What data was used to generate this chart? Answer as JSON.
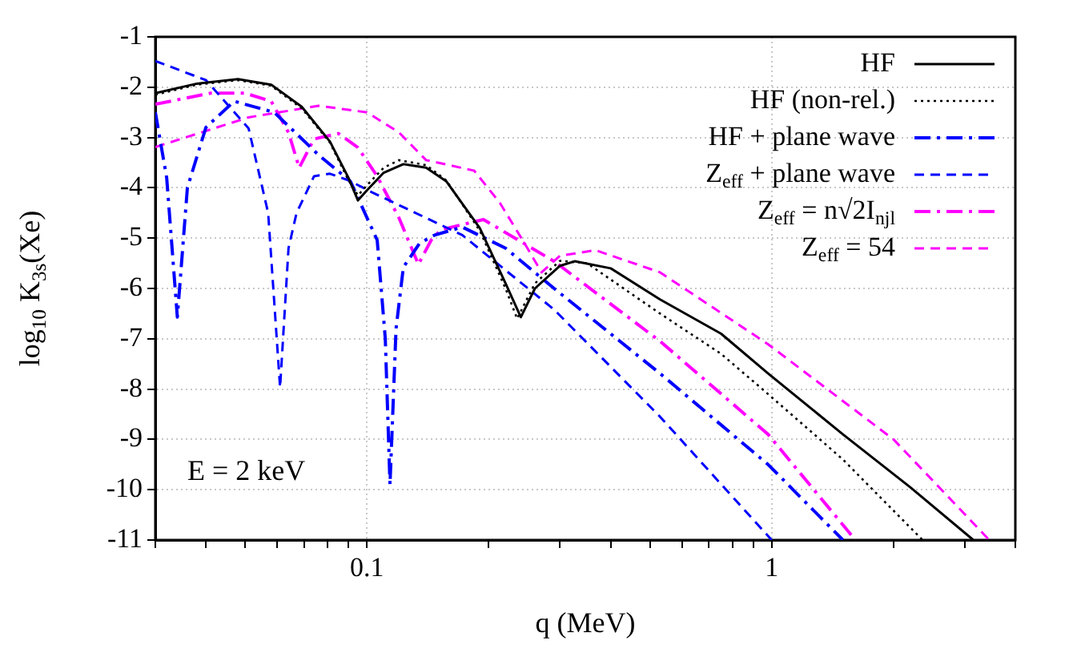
{
  "chart_data": {
    "type": "line",
    "xlabel": "q (MeV)",
    "ylabel": "log$_{10}$ K$_{3s}$(Xe)",
    "log": "x",
    "grid": true,
    "legend": "top right",
    "marker": "none",
    "xlim": [
      0.03,
      4
    ],
    "ylim": [
      -11,
      -1
    ],
    "xticks": [
      {
        "value": 0.03,
        "label": null
      },
      {
        "value": 0.04,
        "label": null
      },
      {
        "value": 0.05,
        "label": null
      },
      {
        "value": 0.06,
        "label": null
      },
      {
        "value": 0.07,
        "label": null
      },
      {
        "value": 0.08,
        "label": null
      },
      {
        "value": 0.09,
        "label": null
      },
      0.1,
      {
        "value": 0.2,
        "label": null
      },
      {
        "value": 0.3,
        "label": null
      },
      {
        "value": 0.4,
        "label": null
      },
      {
        "value": 0.5,
        "label": null
      },
      {
        "value": 0.6,
        "label": null
      },
      {
        "value": 0.7,
        "label": null
      },
      {
        "value": 0.8,
        "label": null
      },
      {
        "value": 0.9,
        "label": null
      },
      1,
      {
        "value": 2,
        "label": null
      },
      {
        "value": 3,
        "label": null
      },
      {
        "value": 4,
        "label": null
      }
    ],
    "yticks": [
      -11,
      -10,
      -9,
      -8,
      -7,
      -6,
      -5,
      -4,
      -3,
      -2,
      -1
    ],
    "annotations": [
      "E = 2 keV"
    ],
    "series": [
      {
        "name": "HF",
        "color": "#000000",
        "line_style": "solid",
        "x": [
          0.03,
          0.038,
          0.048,
          0.058,
          0.069,
          0.081,
          0.09,
          0.095,
          0.1,
          0.11,
          0.123,
          0.14,
          0.157,
          0.19,
          0.22,
          0.24,
          0.26,
          0.3,
          0.326,
          0.4,
          0.53,
          0.75,
          0.98,
          1.5,
          2.2,
          3.15
        ],
        "values": [
          -2.12,
          -1.93,
          -1.84,
          -1.95,
          -2.39,
          -3.08,
          -3.8,
          -4.25,
          -4.05,
          -3.7,
          -3.53,
          -3.6,
          -3.87,
          -4.8,
          -5.9,
          -6.57,
          -6.0,
          -5.55,
          -5.46,
          -5.6,
          -6.22,
          -6.9,
          -7.69,
          -8.9,
          -9.95,
          -11
        ]
      },
      {
        "name": "HF (non-rel.)",
        "color": "#000000",
        "line_style": "dotted",
        "x": [
          0.03,
          0.038,
          0.048,
          0.058,
          0.069,
          0.081,
          0.09,
          0.095,
          0.1,
          0.11,
          0.12,
          0.14,
          0.157,
          0.19,
          0.22,
          0.235,
          0.26,
          0.3,
          0.35,
          0.53,
          0.75,
          0.98,
          1.5,
          2.36
        ],
        "values": [
          -2.15,
          -1.95,
          -1.86,
          -1.97,
          -2.42,
          -3.1,
          -3.85,
          -4.15,
          -3.95,
          -3.6,
          -3.45,
          -3.55,
          -3.85,
          -4.85,
          -6.0,
          -6.6,
          -5.9,
          -5.45,
          -5.5,
          -6.5,
          -7.3,
          -8.1,
          -9.4,
          -11
        ]
      },
      {
        "name": "HF + plane wave",
        "color": "#0000ff",
        "line_style": "dashdot",
        "x": [
          0.03,
          0.032,
          0.034,
          0.036,
          0.04,
          0.047,
          0.059,
          0.076,
          0.091,
          0.106,
          0.111,
          0.114,
          0.118,
          0.123,
          0.135,
          0.147,
          0.172,
          0.22,
          0.29,
          0.53,
          0.98,
          1.5
        ],
        "values": [
          -2.5,
          -3.8,
          -6.57,
          -4.0,
          -2.8,
          -2.28,
          -2.5,
          -3.35,
          -3.87,
          -5.04,
          -7.0,
          -9.9,
          -6.8,
          -5.58,
          -5.1,
          -4.94,
          -4.78,
          -5.2,
          -6.0,
          -7.69,
          -9.5,
          -11
        ]
      },
      {
        "name": "Z$_{eff}$ + plane wave",
        "color": "#0000ff",
        "line_style": "dashed",
        "x": [
          0.03,
          0.04,
          0.051,
          0.057,
          0.061,
          0.064,
          0.067,
          0.074,
          0.081,
          0.09,
          0.103,
          0.172,
          0.29,
          0.53,
          1.0
        ],
        "values": [
          -1.48,
          -1.86,
          -2.82,
          -4.5,
          -7.97,
          -5.2,
          -4.5,
          -3.77,
          -3.72,
          -3.85,
          -4.09,
          -4.94,
          -6.42,
          -8.55,
          -11
        ]
      },
      {
        "name": "Z$_{eff}$ = n√2I$_{njl}$",
        "color": "#ff00ff",
        "line_style": "dashdot",
        "x": [
          0.03,
          0.041,
          0.05,
          0.058,
          0.064,
          0.068,
          0.074,
          0.085,
          0.095,
          0.106,
          0.12,
          0.134,
          0.145,
          0.153,
          0.194,
          0.29,
          0.53,
          0.98,
          1.61
        ],
        "values": [
          -2.34,
          -2.12,
          -2.12,
          -2.28,
          -2.9,
          -3.6,
          -3.03,
          -2.92,
          -3.2,
          -3.77,
          -4.6,
          -5.52,
          -5.0,
          -4.83,
          -4.63,
          -5.46,
          -7.05,
          -8.9,
          -11
        ]
      },
      {
        "name": "Z$_{eff}$ = 54",
        "color": "#ff00ff",
        "line_style": "dashed",
        "x": [
          0.03,
          0.051,
          0.076,
          0.1,
          0.12,
          0.14,
          0.16,
          0.184,
          0.213,
          0.245,
          0.27,
          0.3,
          0.367,
          0.53,
          0.98,
          2.0,
          3.45
        ],
        "values": [
          -3.19,
          -2.6,
          -2.37,
          -2.5,
          -2.9,
          -3.45,
          -3.55,
          -3.66,
          -4.3,
          -5.1,
          -5.68,
          -5.35,
          -5.24,
          -5.68,
          -7.11,
          -9.0,
          -11
        ]
      }
    ]
  }
}
